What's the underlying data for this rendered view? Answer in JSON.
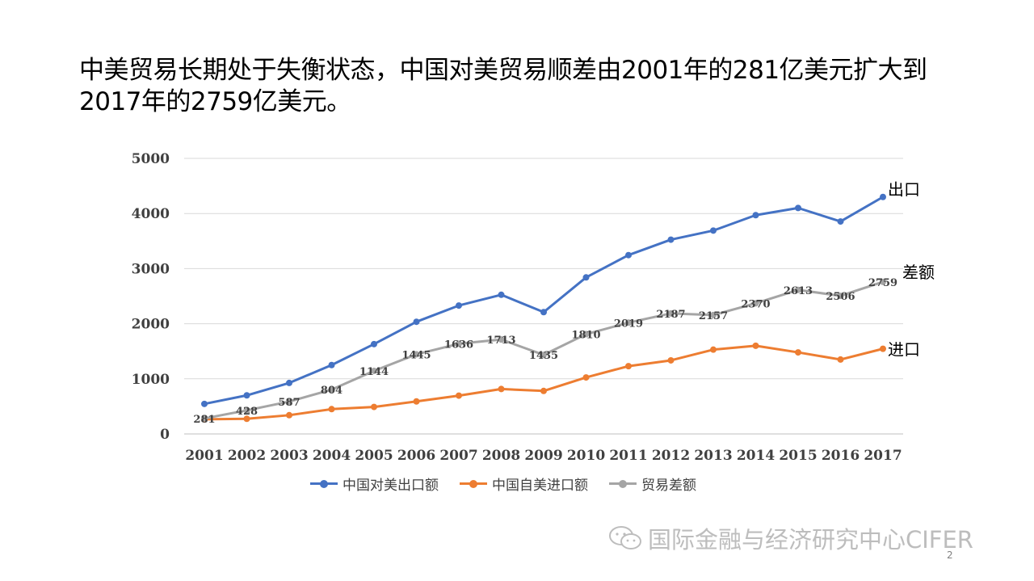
{
  "slide": {
    "title": "中美贸易长期处于失衡状态，中国对美贸易顺差由2001年的281亿美元扩大到2017年的2759亿美元。",
    "watermark": "国际金融与经济研究中心CIFER",
    "page_number": "2"
  },
  "colors": {
    "export": "#4472C4",
    "import": "#ED7D31",
    "balance": "#A5A5A5",
    "grid": "#D9D9D9",
    "watermark": "#BDBDBD"
  },
  "chart_data": {
    "type": "line",
    "categories": [
      "2001",
      "2002",
      "2003",
      "2004",
      "2005",
      "2006",
      "2007",
      "2008",
      "2009",
      "2010",
      "2011",
      "2012",
      "2013",
      "2014",
      "2015",
      "2016",
      "2017"
    ],
    "yticks": [
      "0",
      "1000",
      "2000",
      "3000",
      "4000",
      "5000"
    ],
    "ylim": [
      0,
      5000
    ],
    "grid": true,
    "legend_position": "bottom",
    "series": [
      {
        "name": "中国对美出口额",
        "key": "export",
        "end_label": "出口",
        "values": [
          545,
          700,
          925,
          1250,
          1630,
          2035,
          2330,
          2525,
          2210,
          2840,
          3245,
          3525,
          3690,
          3970,
          4100,
          3855,
          4300
        ],
        "show_labels": false
      },
      {
        "name": "中国自美进口额",
        "key": "import",
        "end_label": "进口",
        "values": [
          265,
          275,
          340,
          450,
          490,
          590,
          695,
          815,
          780,
          1025,
          1230,
          1335,
          1530,
          1600,
          1480,
          1350,
          1545
        ],
        "show_labels": false
      },
      {
        "name": "贸易差额",
        "key": "balance",
        "end_label": "差额",
        "values": [
          281,
          428,
          587,
          804,
          1144,
          1445,
          1636,
          1713,
          1435,
          1810,
          2019,
          2187,
          2157,
          2370,
          2613,
          2506,
          2759
        ],
        "show_labels": true
      }
    ]
  }
}
